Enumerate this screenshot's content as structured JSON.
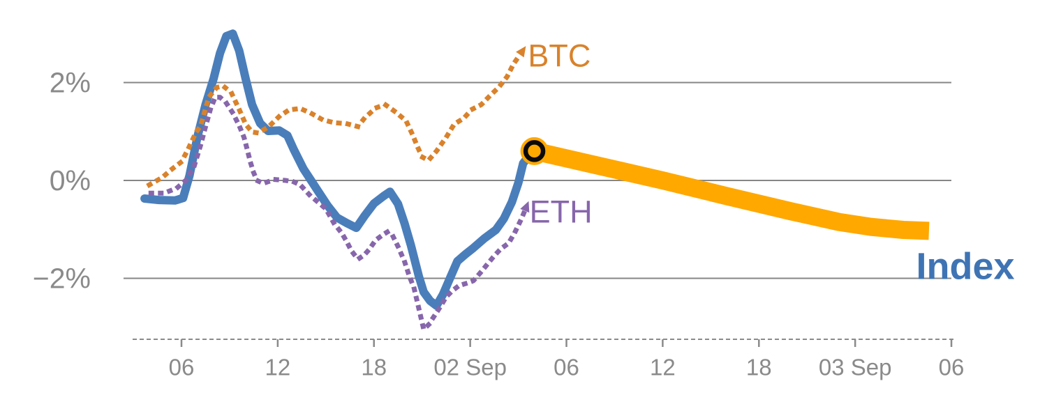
{
  "chart_data": {
    "type": "line",
    "title": "",
    "background": "#ffffff",
    "grid_color": "#868686",
    "axis_color": "#8a8a8a",
    "label_color": "#8a8a8a",
    "x_axis": {
      "style": "dashed",
      "ticks": [
        {
          "hour": 6,
          "label": "06"
        },
        {
          "hour": 12,
          "label": "12"
        },
        {
          "hour": 18,
          "label": "18"
        },
        {
          "hour": 24,
          "label": "02 Sep"
        },
        {
          "hour": 30,
          "label": "06"
        },
        {
          "hour": 36,
          "label": "12"
        },
        {
          "hour": 42,
          "label": "18"
        },
        {
          "hour": 48,
          "label": "03 Sep"
        },
        {
          "hour": 54,
          "label": "06"
        }
      ]
    },
    "y_axis": {
      "ticks": [
        {
          "value": 2,
          "label": "2%"
        },
        {
          "value": 0,
          "label": "0%"
        },
        {
          "value": -2,
          "label": "−2%"
        }
      ]
    },
    "series": [
      {
        "name": "Index",
        "color": "#4a7ebb",
        "style": "solid",
        "points": [
          [
            3.7,
            -0.37
          ],
          [
            4.6,
            -0.4
          ],
          [
            5.6,
            -0.41
          ],
          [
            6.1,
            -0.36
          ],
          [
            6.5,
            0.1
          ],
          [
            7.0,
            0.9
          ],
          [
            7.5,
            1.55
          ],
          [
            8.0,
            2.08
          ],
          [
            8.4,
            2.6
          ],
          [
            8.8,
            2.95
          ],
          [
            9.2,
            3.0
          ],
          [
            9.6,
            2.65
          ],
          [
            10.0,
            2.08
          ],
          [
            10.4,
            1.55
          ],
          [
            10.9,
            1.17
          ],
          [
            11.4,
            1.01
          ],
          [
            12.1,
            1.02
          ],
          [
            12.6,
            0.92
          ],
          [
            13.0,
            0.63
          ],
          [
            13.6,
            0.24
          ],
          [
            14.1,
            -0.01
          ],
          [
            14.5,
            -0.21
          ],
          [
            15.1,
            -0.51
          ],
          [
            15.7,
            -0.76
          ],
          [
            16.3,
            -0.87
          ],
          [
            16.9,
            -0.97
          ],
          [
            17.4,
            -0.73
          ],
          [
            18.0,
            -0.47
          ],
          [
            18.6,
            -0.32
          ],
          [
            19.0,
            -0.23
          ],
          [
            19.5,
            -0.48
          ],
          [
            19.9,
            -0.87
          ],
          [
            20.3,
            -1.32
          ],
          [
            20.8,
            -1.96
          ],
          [
            21.1,
            -2.28
          ],
          [
            21.5,
            -2.46
          ],
          [
            21.9,
            -2.56
          ],
          [
            22.3,
            -2.33
          ],
          [
            22.8,
            -1.95
          ],
          [
            23.2,
            -1.65
          ],
          [
            23.7,
            -1.51
          ],
          [
            24.2,
            -1.38
          ],
          [
            24.9,
            -1.18
          ],
          [
            25.6,
            -1.01
          ],
          [
            26.1,
            -0.78
          ],
          [
            26.6,
            -0.44
          ],
          [
            27.0,
            -0.05
          ],
          [
            27.3,
            0.35
          ],
          [
            27.7,
            0.52
          ],
          [
            28.0,
            0.6
          ]
        ]
      },
      {
        "name": "ETH",
        "color": "#8766ac",
        "style": "dotted",
        "arrow_end": true,
        "label": {
          "text": "ETH",
          "hour": 27.7,
          "value": -0.64
        },
        "points": [
          [
            4.1,
            -0.26
          ],
          [
            4.9,
            -0.26
          ],
          [
            5.7,
            -0.16
          ],
          [
            6.3,
            0.01
          ],
          [
            6.8,
            0.3
          ],
          [
            7.2,
            0.73
          ],
          [
            7.5,
            1.1
          ],
          [
            7.8,
            1.45
          ],
          [
            8.1,
            1.7
          ],
          [
            8.4,
            1.7
          ],
          [
            8.8,
            1.58
          ],
          [
            9.2,
            1.38
          ],
          [
            9.6,
            1.12
          ],
          [
            9.9,
            0.88
          ],
          [
            10.1,
            0.63
          ],
          [
            10.3,
            0.37
          ],
          [
            10.5,
            0.16
          ],
          [
            10.7,
            0.0
          ],
          [
            11.1,
            -0.06
          ],
          [
            11.8,
            0.02
          ],
          [
            12.5,
            0.0
          ],
          [
            13.0,
            -0.03
          ],
          [
            13.4,
            -0.09
          ],
          [
            14.0,
            -0.3
          ],
          [
            14.5,
            -0.44
          ],
          [
            15.0,
            -0.58
          ],
          [
            15.5,
            -0.87
          ],
          [
            16.0,
            -1.08
          ],
          [
            16.3,
            -1.25
          ],
          [
            16.6,
            -1.44
          ],
          [
            17.0,
            -1.61
          ],
          [
            17.4,
            -1.52
          ],
          [
            17.7,
            -1.41
          ],
          [
            18.1,
            -1.22
          ],
          [
            18.6,
            -1.1
          ],
          [
            18.9,
            -1.04
          ],
          [
            19.2,
            -1.15
          ],
          [
            19.5,
            -1.35
          ],
          [
            19.9,
            -1.65
          ],
          [
            20.2,
            -1.95
          ],
          [
            20.5,
            -2.2
          ],
          [
            20.7,
            -2.48
          ],
          [
            20.9,
            -2.76
          ],
          [
            21.1,
            -3.04
          ],
          [
            21.4,
            -2.95
          ],
          [
            21.7,
            -2.8
          ],
          [
            22.1,
            -2.6
          ],
          [
            22.5,
            -2.38
          ],
          [
            22.9,
            -2.25
          ],
          [
            23.3,
            -2.15
          ],
          [
            23.8,
            -2.1
          ],
          [
            24.2,
            -2.05
          ],
          [
            24.6,
            -1.9
          ],
          [
            25.1,
            -1.7
          ],
          [
            25.5,
            -1.54
          ],
          [
            25.9,
            -1.4
          ],
          [
            26.4,
            -1.28
          ],
          [
            26.8,
            -1.05
          ],
          [
            27.2,
            -0.78
          ],
          [
            27.4,
            -0.62
          ]
        ]
      },
      {
        "name": "BTC",
        "color": "#d9822b",
        "style": "dotted",
        "arrow_end": true,
        "label": {
          "text": "BTC",
          "hour": 27.6,
          "value": 2.55
        },
        "points": [
          [
            4.0,
            -0.09
          ],
          [
            4.8,
            0.06
          ],
          [
            5.4,
            0.23
          ],
          [
            6.0,
            0.38
          ],
          [
            6.4,
            0.63
          ],
          [
            6.9,
            0.98
          ],
          [
            7.2,
            1.12
          ],
          [
            7.7,
            1.7
          ],
          [
            8.2,
            1.9
          ],
          [
            8.6,
            1.93
          ],
          [
            9.1,
            1.8
          ],
          [
            9.6,
            1.45
          ],
          [
            10.0,
            1.15
          ],
          [
            10.4,
            0.99
          ],
          [
            10.8,
            0.97
          ],
          [
            11.2,
            1.05
          ],
          [
            11.6,
            1.15
          ],
          [
            12.1,
            1.31
          ],
          [
            12.7,
            1.44
          ],
          [
            13.4,
            1.47
          ],
          [
            14.1,
            1.37
          ],
          [
            14.8,
            1.24
          ],
          [
            15.5,
            1.18
          ],
          [
            16.3,
            1.16
          ],
          [
            17.0,
            1.1
          ],
          [
            17.4,
            1.27
          ],
          [
            18.1,
            1.48
          ],
          [
            18.7,
            1.55
          ],
          [
            19.3,
            1.41
          ],
          [
            20.0,
            1.22
          ],
          [
            20.4,
            0.94
          ],
          [
            20.7,
            0.7
          ],
          [
            21.0,
            0.48
          ],
          [
            21.4,
            0.41
          ],
          [
            21.9,
            0.6
          ],
          [
            22.5,
            0.88
          ],
          [
            23.0,
            1.15
          ],
          [
            23.6,
            1.27
          ],
          [
            24.1,
            1.45
          ],
          [
            24.7,
            1.55
          ],
          [
            25.2,
            1.72
          ],
          [
            25.8,
            1.91
          ],
          [
            26.3,
            2.12
          ],
          [
            26.7,
            2.38
          ],
          [
            27.1,
            2.57
          ]
        ]
      },
      {
        "name": "Index forecast",
        "color": "#ffa800",
        "style": "band",
        "start_marker": true,
        "marker_ring_color": "#0a0a0a",
        "label": {
          "text": "Index",
          "hour": 51.8,
          "value": -1.76,
          "color": "#3f74b4",
          "bold": true
        },
        "points": [
          [
            28.0,
            0.6
          ],
          [
            32.0,
            0.3
          ],
          [
            36.0,
            0.0
          ],
          [
            40.0,
            -0.32
          ],
          [
            44.0,
            -0.63
          ],
          [
            47.0,
            -0.85
          ],
          [
            49.0,
            -0.95
          ],
          [
            51.0,
            -1.01
          ],
          [
            52.6,
            -1.03
          ]
        ]
      }
    ]
  }
}
